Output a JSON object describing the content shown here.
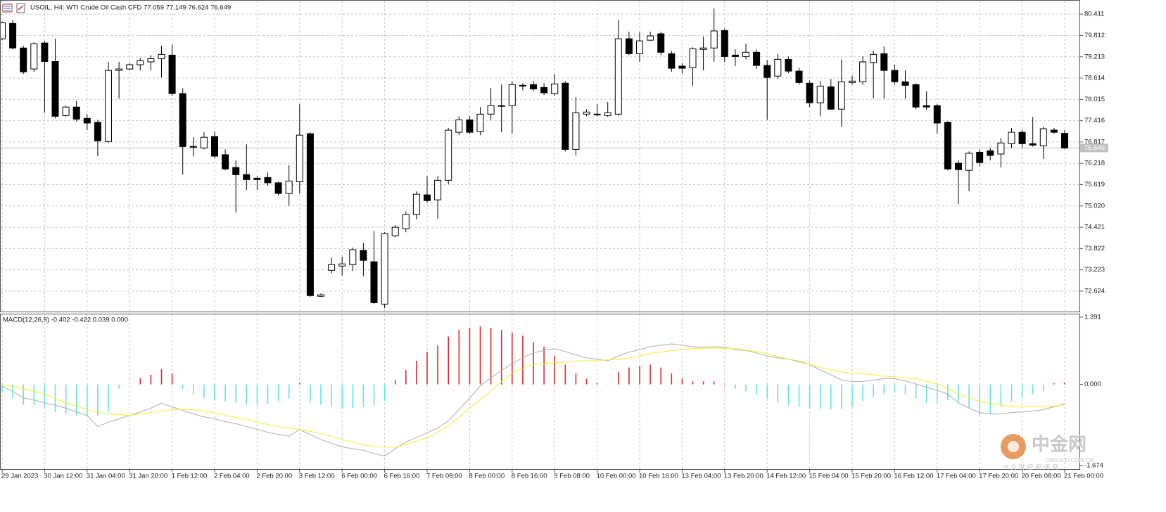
{
  "chart_data": [
    {
      "type": "candlestick",
      "title": "USOIL, H4:  WTI Crude Oil Cash CFD   77.059 77.149 76.624 76.649",
      "categories": [
        "29 Jan 2023",
        null,
        null,
        null,
        "30 Jan 12:00",
        null,
        null,
        null,
        "31 Jan 04:00",
        null,
        null,
        null,
        "31 Jan 20:00",
        null,
        null,
        null,
        "1 Feb 12:00",
        null,
        null,
        null,
        "2 Feb 04:00",
        null,
        null,
        null,
        "2 Feb 20:00",
        null,
        null,
        null,
        "3 Feb 12:00",
        null,
        null,
        null,
        "6 Feb 00:00",
        null,
        null,
        null,
        "6 Feb 16:00",
        null,
        null,
        null,
        "7 Feb 08:00",
        null,
        null,
        null,
        "8 Feb 00:00",
        null,
        null,
        null,
        "8 Feb 16:00",
        null,
        null,
        null,
        "9 Feb 08:00",
        null,
        null,
        null,
        "10 Feb 00:00",
        null,
        null,
        null,
        "10 Feb 16:00",
        null,
        null,
        null,
        "13 Feb 04:00",
        null,
        null,
        null,
        "13 Feb 20:00",
        null,
        null,
        null,
        "14 Feb 12:00",
        null,
        null,
        null,
        "15 Feb 04:00",
        null,
        null,
        null,
        "15 Feb 20:00",
        null,
        null,
        null,
        "16 Feb 12:00",
        null,
        null,
        null,
        "17 Feb 04:00",
        null,
        null,
        null,
        "17 Feb 20:00",
        null,
        null,
        null,
        "20 Feb 08:00",
        null,
        null,
        null,
        "21 Feb 00:00"
      ],
      "open": [
        79.72,
        80.15,
        79.46,
        78.87,
        79.6,
        79.08,
        77.56,
        77.8,
        77.48,
        77.37,
        76.83,
        78.83,
        78.87,
        78.99,
        79.07,
        79.16,
        79.26,
        78.18,
        76.69,
        76.65,
        76.97,
        76.46,
        76.1,
        75.9,
        75.8,
        75.82,
        75.67,
        75.37,
        75.7,
        77.05,
        72.48,
        73.21,
        73.33,
        73.37,
        73.77,
        73.45,
        72.26,
        74.18,
        74.38,
        74.78,
        75.33,
        75.19,
        75.74,
        77.09,
        77.44,
        77.11,
        77.6,
        77.84,
        77.84,
        78.41,
        78.43,
        78.35,
        78.18,
        78.47,
        76.61,
        77.6,
        77.6,
        77.56,
        77.6,
        79.72,
        79.3,
        79.68,
        79.86,
        79.3,
        78.95,
        78.91,
        79.42,
        79.46,
        79.95,
        79.26,
        79.22,
        79.34,
        78.97,
        78.67,
        79.14,
        78.81,
        78.47,
        77.92,
        78.37,
        77.74,
        78.49,
        78.51,
        79.05,
        79.3,
        78.83,
        78.51,
        78.43,
        77.84,
        77.84,
        77.37,
        76.22,
        76.02,
        76.53,
        76.57,
        76.48,
        76.77,
        77.09,
        76.77,
        76.71,
        77.15,
        77.059
      ],
      "high": [
        80.21,
        80.25,
        79.52,
        79.62,
        79.66,
        79.72,
        77.84,
        77.98,
        77.6,
        77.44,
        79.07,
        79.07,
        79.03,
        79.18,
        79.26,
        79.52,
        79.56,
        78.33,
        76.95,
        77.09,
        77.11,
        76.61,
        76.3,
        76.75,
        75.86,
        75.96,
        75.7,
        76.16,
        77.88,
        77.09,
        72.56,
        73.57,
        73.59,
        73.85,
        73.98,
        74.32,
        74.28,
        74.48,
        74.87,
        75.43,
        75.86,
        75.86,
        77.21,
        77.54,
        77.54,
        77.8,
        78.33,
        78.43,
        78.53,
        78.47,
        78.53,
        78.47,
        78.73,
        78.53,
        78.08,
        77.74,
        77.88,
        77.94,
        80.25,
        79.92,
        79.92,
        79.92,
        79.92,
        79.38,
        79.03,
        79.48,
        79.78,
        80.57,
        80.01,
        79.42,
        79.58,
        79.42,
        79.12,
        79.3,
        79.22,
        78.91,
        78.55,
        78.53,
        78.59,
        79.14,
        78.69,
        79.22,
        79.38,
        79.5,
        78.99,
        78.83,
        78.47,
        78.24,
        77.88,
        77.4,
        76.3,
        76.55,
        76.61,
        76.65,
        76.93,
        77.21,
        77.15,
        77.52,
        77.25,
        77.21,
        77.149
      ],
      "low": [
        79.68,
        79.42,
        78.73,
        78.79,
        77.64,
        77.48,
        77.52,
        77.4,
        77.15,
        76.42,
        76.79,
        78.04,
        78.83,
        78.83,
        78.83,
        78.63,
        78.12,
        75.9,
        76.42,
        76.61,
        76.36,
        76.02,
        74.83,
        75.47,
        75.47,
        75.59,
        75.31,
        75.03,
        75.37,
        72.46,
        72.46,
        73.13,
        73.06,
        73.19,
        73.04,
        72.26,
        72.15,
        74.14,
        74.28,
        74.64,
        75.11,
        74.66,
        75.63,
        77.01,
        77.05,
        77.01,
        77.44,
        77.09,
        77.05,
        78.27,
        78.24,
        78.14,
        78.12,
        76.55,
        76.44,
        77.54,
        77.54,
        77.52,
        77.56,
        79.26,
        79.07,
        79.66,
        79.26,
        78.79,
        78.75,
        78.39,
        78.83,
        79.07,
        79.07,
        78.95,
        79.14,
        78.87,
        77.44,
        78.59,
        78.75,
        78.43,
        77.8,
        77.54,
        77.72,
        77.25,
        78.43,
        78.43,
        78.04,
        78.04,
        78.43,
        78.04,
        77.74,
        77.72,
        77.05,
        76.02,
        75.07,
        75.43,
        76.14,
        76.3,
        76.1,
        76.65,
        76.65,
        76.69,
        76.34,
        77.05,
        76.624
      ],
      "close": [
        80.17,
        79.46,
        78.79,
        79.58,
        79.08,
        77.54,
        77.8,
        77.46,
        77.35,
        76.85,
        78.83,
        78.87,
        78.99,
        79.1,
        79.16,
        79.28,
        78.18,
        76.69,
        76.69,
        76.95,
        76.42,
        76.06,
        75.9,
        75.76,
        75.76,
        75.67,
        75.37,
        75.72,
        77.01,
        72.5,
        72.52,
        73.37,
        73.39,
        73.79,
        73.49,
        72.3,
        74.24,
        74.42,
        74.78,
        75.35,
        75.17,
        75.74,
        77.15,
        77.44,
        77.09,
        77.6,
        77.84,
        77.84,
        78.43,
        78.41,
        78.31,
        78.2,
        78.45,
        76.61,
        77.64,
        77.66,
        77.6,
        77.64,
        79.72,
        79.3,
        79.66,
        79.8,
        79.34,
        78.89,
        78.89,
        79.44,
        79.46,
        79.94,
        79.22,
        79.22,
        79.34,
        78.97,
        78.63,
        79.14,
        78.81,
        78.49,
        77.92,
        78.39,
        77.74,
        78.51,
        78.53,
        79.07,
        79.28,
        78.83,
        78.51,
        78.41,
        77.8,
        77.8,
        77.35,
        76.06,
        76.04,
        76.5,
        76.24,
        76.44,
        76.79,
        77.09,
        76.77,
        76.73,
        77.19,
        77.09,
        76.649
      ],
      "up_color": "#ffffff",
      "down_color": "#000000",
      "outline_color": "#000000",
      "current_price_color": "#c0c0c0",
      "ylim": [
        72.05,
        80.77
      ],
      "yticks": [
        80.411,
        79.812,
        79.213,
        78.614,
        78.015,
        77.416,
        76.817,
        76.218,
        75.619,
        {
          "value": 75.02,
          "label": "75.020"
        },
        74.421,
        73.822,
        73.223,
        72.624
      ],
      "grid": true
    },
    {
      "type": "macd",
      "title": "MACD(12,26,9) -0.402 -0.422 0.039 0.000",
      "histogram": {
        "up_color": "#e8262b",
        "down_color": "#5ce6ea",
        "values": [
          -0.17,
          -0.28,
          -0.42,
          -0.42,
          -0.49,
          -0.57,
          -0.61,
          -0.64,
          -0.64,
          -0.64,
          -0.57,
          -0.09,
          0,
          0.13,
          0.2,
          0.32,
          0.23,
          -0.09,
          -0.2,
          -0.28,
          -0.32,
          -0.35,
          -0.38,
          -0.42,
          -0.42,
          -0.41,
          -0.35,
          -0.29,
          0.03,
          -0.38,
          -0.42,
          -0.46,
          -0.49,
          -0.49,
          -0.46,
          -0.43,
          -0.35,
          0.09,
          0.3,
          0.49,
          0.67,
          0.81,
          0.99,
          1.13,
          1.17,
          1.2,
          1.17,
          1.13,
          1.07,
          1.01,
          0.88,
          0.78,
          0.59,
          0.41,
          0.23,
          0.12,
          0.03,
          -0.01,
          0.26,
          0.35,
          0.38,
          0.41,
          0.35,
          0.23,
          0.12,
          0.06,
          0.06,
          0.06,
          0.01,
          -0.09,
          -0.14,
          -0.2,
          -0.29,
          -0.38,
          -0.43,
          -0.46,
          -0.49,
          -0.51,
          -0.52,
          -0.52,
          -0.46,
          -0.35,
          -0.26,
          -0.2,
          -0.17,
          -0.2,
          -0.29,
          -0.38,
          -0.38,
          -0.32,
          -0.38,
          -0.49,
          -0.64,
          -0.61,
          -0.46,
          -0.35,
          -0.28,
          -0.2,
          -0.14,
          0.03,
          0.039
        ]
      },
      "main": {
        "color": "#b4b4b4",
        "values": [
          -0.03,
          -0.14,
          -0.28,
          -0.32,
          -0.38,
          -0.43,
          -0.49,
          -0.57,
          -0.64,
          -0.87,
          -0.78,
          -0.71,
          -0.64,
          -0.57,
          -0.49,
          -0.39,
          -0.46,
          -0.54,
          -0.61,
          -0.67,
          -0.71,
          -0.77,
          -0.81,
          -0.87,
          -0.93,
          -0.99,
          -1.03,
          -1.07,
          -0.93,
          -1.04,
          -1.14,
          -1.22,
          -1.29,
          -1.33,
          -1.36,
          -1.43,
          -1.48,
          -1.33,
          -1.19,
          -1.1,
          -1,
          -0.9,
          -0.75,
          -0.52,
          -0.28,
          -0.03,
          0.13,
          0.29,
          0.43,
          0.55,
          0.65,
          0.71,
          0.74,
          0.68,
          0.61,
          0.55,
          0.52,
          0.49,
          0.59,
          0.67,
          0.72,
          0.78,
          0.81,
          0.84,
          0.81,
          0.78,
          0.77,
          0.78,
          0.77,
          0.72,
          0.7,
          0.65,
          0.59,
          0.55,
          0.52,
          0.48,
          0.41,
          0.3,
          0.2,
          0.09,
          0.06,
          0.06,
          0.09,
          0.12,
          0.12,
          0.07,
          0.01,
          -0.06,
          -0.12,
          -0.2,
          -0.38,
          -0.49,
          -0.58,
          -0.61,
          -0.61,
          -0.58,
          -0.57,
          -0.55,
          -0.52,
          -0.46,
          -0.402
        ]
      },
      "signal": {
        "color": "#f5f03c",
        "values": [
          -0.01,
          -0.04,
          -0.09,
          -0.14,
          -0.2,
          -0.29,
          -0.38,
          -0.45,
          -0.52,
          -0.57,
          -0.61,
          -0.62,
          -0.64,
          -0.61,
          -0.58,
          -0.55,
          -0.52,
          -0.52,
          -0.52,
          -0.55,
          -0.59,
          -0.64,
          -0.68,
          -0.72,
          -0.78,
          -0.83,
          -0.87,
          -0.9,
          -0.93,
          -0.97,
          -1.01,
          -1.07,
          -1.14,
          -1.19,
          -1.25,
          -1.28,
          -1.3,
          -1.3,
          -1.25,
          -1.17,
          -1.1,
          -0.99,
          -0.85,
          -0.68,
          -0.49,
          -0.32,
          -0.13,
          0.06,
          0.23,
          0.33,
          0.41,
          0.43,
          0.45,
          0.46,
          0.48,
          0.49,
          0.49,
          0.51,
          0.52,
          0.55,
          0.59,
          0.64,
          0.67,
          0.7,
          0.72,
          0.74,
          0.75,
          0.75,
          0.75,
          0.74,
          0.71,
          0.68,
          0.64,
          0.58,
          0.52,
          0.46,
          0.41,
          0.35,
          0.3,
          0.26,
          0.23,
          0.22,
          0.2,
          0.17,
          0.16,
          0.14,
          0.12,
          0.07,
          0.01,
          -0.09,
          -0.2,
          -0.28,
          -0.35,
          -0.39,
          -0.43,
          -0.45,
          -0.46,
          -0.46,
          -0.46,
          -0.45,
          -0.422
        ]
      },
      "ylim": [
        -1.765,
        1.449
      ],
      "yticks": [
        1.391,
        {
          "value": 0,
          "label": "0.000"
        },
        -1.674
      ]
    }
  ],
  "watermark": {
    "name": "中金网",
    "site": "CNGOLD.COM.CN",
    "tagline": "中 文 财 经 新 闻 网"
  }
}
